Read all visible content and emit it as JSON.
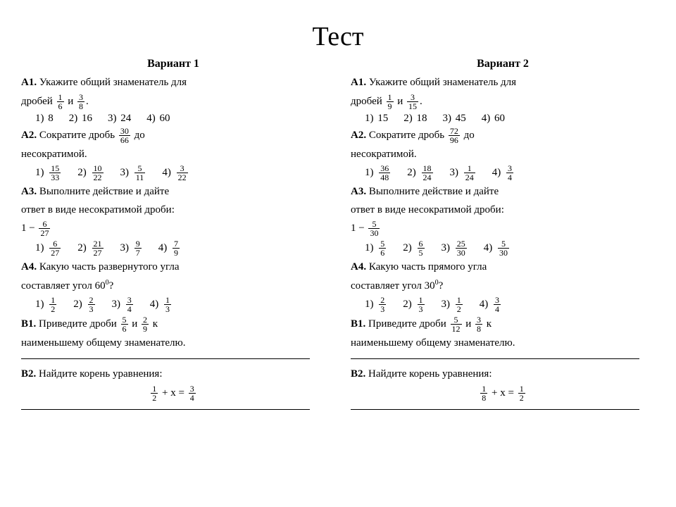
{
  "title": "Тест",
  "variants": {
    "v1": {
      "heading": "Вариант 1",
      "a1": {
        "label": "А1.",
        "text1": "Укажите общий знаменатель для",
        "text2": "дробей",
        "i": "и",
        "f1n": "1",
        "f1d": "6",
        "f2n": "3",
        "f2d": "8",
        "opts": {
          "o1n": "1)",
          "o1": "8",
          "o2n": "2)",
          "o2": "16",
          "o3n": "3)",
          "o3": "24",
          "o4n": "4)",
          "o4": "60"
        }
      },
      "a2": {
        "label": "А2.",
        "text1": "Сократите дробь",
        "text2": "до",
        "text3": "несократимой.",
        "fn": "30",
        "fd": "66",
        "opts": {
          "o1n": "1)",
          "o1t": "15",
          "o1b": "33",
          "o2n": "2)",
          "o2t": "10",
          "o2b": "22",
          "o3n": "3)",
          "o3t": "5",
          "o3b": "11",
          "o4n": "4)",
          "o4t": "3",
          "o4b": "22"
        }
      },
      "a3": {
        "label": "А3.",
        "text1": "Выполните действие и дайте",
        "text2": "ответ в виде несократимой дроби:",
        "exprpre": "1 −",
        "fn": "6",
        "fd": "27",
        "opts": {
          "o1n": "1)",
          "o1t": "6",
          "o1b": "27",
          "o2n": "2)",
          "o2t": "21",
          "o2b": "27",
          "o3n": "3)",
          "o3t": "9",
          "o3b": "7",
          "o4n": "4)",
          "o4t": "7",
          "o4b": "9"
        }
      },
      "a4": {
        "label": "А4.",
        "text1": "Какую часть развернутого угла",
        "text2": "составляет угол 60",
        "deg": "0",
        "qmark": "?",
        "opts": {
          "o1n": "1)",
          "o1t": "1",
          "o1b": "2",
          "o2n": "2)",
          "o2t": "2",
          "o2b": "3",
          "o3n": "3)",
          "o3t": "3",
          "o3b": "4",
          "o4n": "4)",
          "o4t": "1",
          "o4b": "3"
        }
      },
      "b1": {
        "label": "В1.",
        "text1": "Приведите дроби",
        "i": "и",
        "k": "к",
        "text2": "наименьшему общему знаменателю.",
        "f1n": "5",
        "f1d": "6",
        "f2n": "2",
        "f2d": "9"
      },
      "b2": {
        "label": "В2.",
        "text1": "Найдите корень уравнения:",
        "lfn": "1",
        "lfd": "2",
        "mid": "+  x  =",
        "rfn": "3",
        "rfd": "4"
      }
    },
    "v2": {
      "heading": "Вариант 2",
      "a1": {
        "label": "А1.",
        "text1": "Укажите общий знаменатель для",
        "text2": "дробей",
        "i": "и",
        "f1n": "1",
        "f1d": "9",
        "f2n": "3",
        "f2d": "15",
        "opts": {
          "o1n": "1)",
          "o1": "15",
          "o2n": "2)",
          "o2": "18",
          "o3n": "3)",
          "o3": "45",
          "o4n": "4)",
          "o4": "60"
        }
      },
      "a2": {
        "label": "А2.",
        "text1": "Сократите дробь",
        "text2": "до",
        "text3": "несократимой.",
        "fn": "72",
        "fd": "96",
        "opts": {
          "o1n": "1)",
          "o1t": "36",
          "o1b": "48",
          "o2n": "2)",
          "o2t": "18",
          "o2b": "24",
          "o3n": "3)",
          "o3t": "1",
          "o3b": "24",
          "o4n": "4)",
          "o4t": "3",
          "o4b": "4"
        }
      },
      "a3": {
        "label": "А3.",
        "text1": "Выполните действие и дайте",
        "text2": "ответ в виде несократимой дроби:",
        "exprpre": "1 −",
        "fn": "5",
        "fd": "30",
        "opts": {
          "o1n": "1)",
          "o1t": "5",
          "o1b": "6",
          "o2n": "2)",
          "o2t": "6",
          "o2b": "5",
          "o3n": "3)",
          "o3t": "25",
          "o3b": "30",
          "o4n": "4)",
          "o4t": "5",
          "o4b": "30"
        }
      },
      "a4": {
        "label": "А4.",
        "text1": "Какую часть  прямого угла",
        "text2": "составляет угол 30",
        "deg": "0",
        "qmark": "?",
        "opts": {
          "o1n": "1)",
          "o1t": "2",
          "o1b": "3",
          "o2n": "2)",
          "o2t": "1",
          "o2b": "3",
          "o3n": "3)",
          "o3t": "1",
          "o3b": "2",
          "o4n": "4)",
          "o4t": "3",
          "o4b": "4"
        }
      },
      "b1": {
        "label": "В1.",
        "text1": "Приведите дроби",
        "i": "и",
        "k": "к",
        "text2": "наименьшему общему знаменателю.",
        "f1n": "5",
        "f1d": "12",
        "f2n": "3",
        "f2d": "8"
      },
      "b2": {
        "label": "В2.",
        "text1": "Найдите корень уравнения:",
        "lfn": "1",
        "lfd": "8",
        "mid": "+  x  =",
        "rfn": "1",
        "rfd": "2"
      }
    }
  }
}
